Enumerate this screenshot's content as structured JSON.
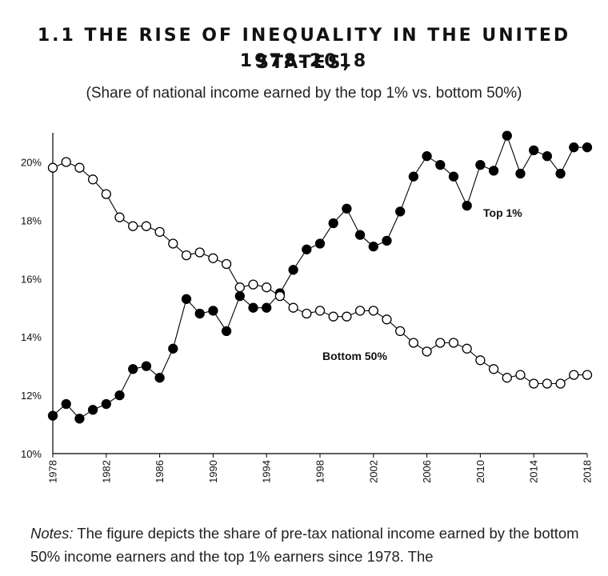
{
  "title_line1": "1.1 THE RISE OF INEQUALITY IN THE UNITED STATES,",
  "title_line2": "1978–2018",
  "subtitle": "(Share of national income earned by the top 1% vs. bottom 50%)",
  "notes_label": "Notes:",
  "notes_text": " The figure depicts the share of pre-tax national income earned by the bottom 50% income earners and the top 1% earners since 1978. The",
  "chart_data": {
    "type": "line",
    "title": "1.1 THE RISE OF INEQUALITY IN THE UNITED STATES, 1978–2018",
    "subtitle": "(Share of national income earned by the top 1% vs. bottom 50%)",
    "xlabel": "",
    "ylabel": "",
    "xlim": [
      1978,
      2018
    ],
    "ylim": [
      10,
      21
    ],
    "yticks": [
      10,
      12,
      14,
      16,
      18,
      20
    ],
    "ytick_labels": [
      "10%",
      "12%",
      "14%",
      "16%",
      "18%",
      "20%"
    ],
    "xticks": [
      1978,
      1982,
      1986,
      1990,
      1994,
      1998,
      2002,
      2006,
      2010,
      2014,
      2018
    ],
    "xtick_labels": [
      "1978",
      "1982",
      "1986",
      "1990",
      "1994",
      "1998",
      "2002",
      "2006",
      "2010",
      "2014",
      "2018"
    ],
    "grid": false,
    "x": [
      1978,
      1979,
      1980,
      1981,
      1982,
      1983,
      1984,
      1985,
      1986,
      1987,
      1988,
      1989,
      1990,
      1991,
      1992,
      1993,
      1994,
      1995,
      1996,
      1997,
      1998,
      1999,
      2000,
      2001,
      2002,
      2003,
      2004,
      2005,
      2006,
      2007,
      2008,
      2009,
      2010,
      2011,
      2012,
      2013,
      2014,
      2015,
      2016,
      2017,
      2018
    ],
    "series": [
      {
        "name": "Top 1%",
        "marker": "filled-circle",
        "color": "#000000",
        "values": [
          11.3,
          11.7,
          11.2,
          11.5,
          11.7,
          12.0,
          12.9,
          13.0,
          12.6,
          13.6,
          15.3,
          14.8,
          14.9,
          14.2,
          15.4,
          15.0,
          15.0,
          15.5,
          16.3,
          17.0,
          17.2,
          17.9,
          18.4,
          17.5,
          17.1,
          17.3,
          18.3,
          19.5,
          20.2,
          19.9,
          19.5,
          18.5,
          19.9,
          19.7,
          20.9,
          19.6,
          20.4,
          20.2,
          19.6,
          20.5,
          20.5
        ]
      },
      {
        "name": "Bottom 50%",
        "marker": "open-circle",
        "color": "#000000",
        "values": [
          19.8,
          20.0,
          19.8,
          19.4,
          18.9,
          18.1,
          17.8,
          17.8,
          17.6,
          17.2,
          16.8,
          16.9,
          16.7,
          16.5,
          15.7,
          15.8,
          15.7,
          15.4,
          15.0,
          14.8,
          14.9,
          14.7,
          14.7,
          14.9,
          14.9,
          14.6,
          14.2,
          13.8,
          13.5,
          13.8,
          13.8,
          13.6,
          13.2,
          12.9,
          12.6,
          12.7,
          12.4,
          12.4,
          12.4,
          12.7,
          12.7
        ]
      }
    ]
  }
}
